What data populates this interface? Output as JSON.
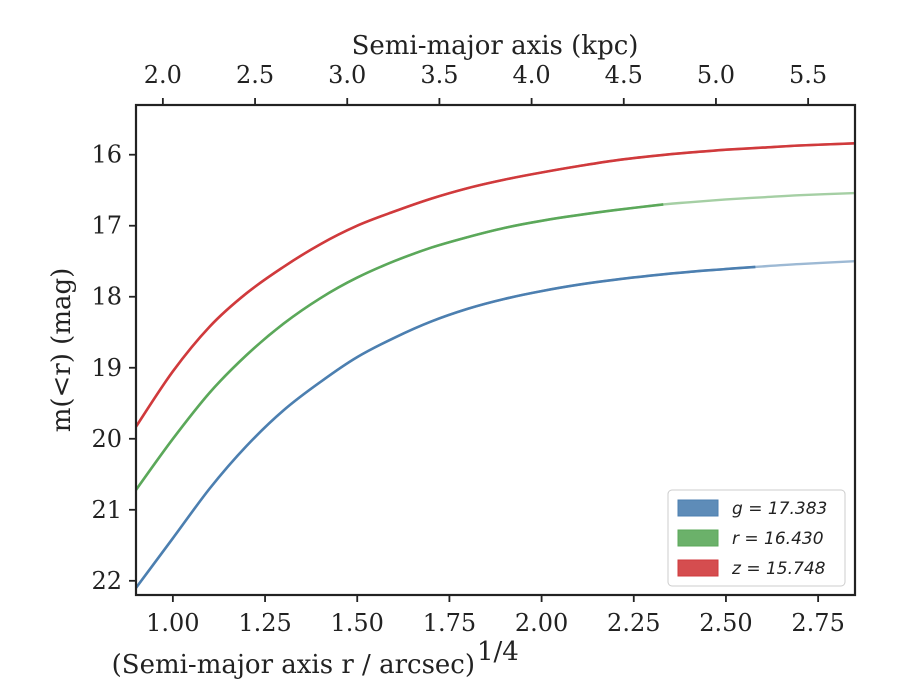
{
  "chart_data": {
    "type": "line",
    "title": "",
    "xlabel": "(Semi-major axis r / arcsec)",
    "xlabel_exponent": "1/4",
    "ylabel": "m(<r) (mag)",
    "top_xlabel": "Semi-major axis (kpc)",
    "xlim": [
      0.9,
      2.85
    ],
    "ylim": [
      22.2,
      15.3
    ],
    "y_inverted": true,
    "x_ticks": [
      1.0,
      1.25,
      1.5,
      1.75,
      2.0,
      2.25,
      2.5,
      2.75
    ],
    "x_tick_labels": [
      "1.00",
      "1.25",
      "1.50",
      "1.75",
      "2.00",
      "2.25",
      "2.50",
      "2.75"
    ],
    "y_ticks": [
      16,
      17,
      18,
      19,
      20,
      21,
      22
    ],
    "y_tick_labels": [
      "16",
      "17",
      "18",
      "19",
      "20",
      "21",
      "22"
    ],
    "top_ticks_x": [
      1.0,
      1.25,
      1.5,
      1.75,
      2.0,
      2.25,
      2.5,
      2.75
    ],
    "top_tick_labels": [
      "2.0",
      "2.5",
      "3.0",
      "3.5",
      "4.0",
      "4.5",
      "5.0",
      "5.5"
    ],
    "grid": false,
    "legend_position": "bottom-right",
    "series": [
      {
        "name": "g = 17.383",
        "band": "g",
        "value": "17.383",
        "color": "#4c7fb0",
        "x": [
          0.9,
          1.0,
          1.1,
          1.2,
          1.3,
          1.4,
          1.5,
          1.6,
          1.7,
          1.8,
          1.9,
          2.0,
          2.1,
          2.2,
          2.3,
          2.4,
          2.5,
          2.58,
          2.7,
          2.85
        ],
        "y": [
          22.1,
          21.4,
          20.7,
          20.1,
          19.6,
          19.2,
          18.85,
          18.58,
          18.35,
          18.17,
          18.03,
          17.92,
          17.83,
          17.76,
          17.7,
          17.65,
          17.61,
          17.58,
          17.54,
          17.5
        ],
        "solid_until": 2.58
      },
      {
        "name": "r = 16.430",
        "band": "r",
        "value": "16.430",
        "color": "#5ba85a",
        "x": [
          0.9,
          1.0,
          1.1,
          1.2,
          1.3,
          1.4,
          1.5,
          1.6,
          1.7,
          1.8,
          1.9,
          2.0,
          2.1,
          2.2,
          2.33,
          2.4,
          2.5,
          2.6,
          2.7,
          2.85
        ],
        "y": [
          20.72,
          20.0,
          19.35,
          18.82,
          18.38,
          18.02,
          17.73,
          17.5,
          17.31,
          17.16,
          17.03,
          16.93,
          16.85,
          16.78,
          16.7,
          16.67,
          16.63,
          16.6,
          16.57,
          16.54
        ],
        "solid_until": 2.33
      },
      {
        "name": "z = 15.748",
        "band": "z",
        "value": "15.748",
        "color": "#d03a3c",
        "x": [
          0.9,
          1.0,
          1.1,
          1.2,
          1.3,
          1.4,
          1.5,
          1.6,
          1.7,
          1.8,
          1.9,
          2.0,
          2.1,
          2.2,
          2.3,
          2.4,
          2.5,
          2.6,
          2.7,
          2.85
        ],
        "y": [
          19.83,
          19.05,
          18.42,
          17.95,
          17.58,
          17.26,
          17.0,
          16.8,
          16.62,
          16.47,
          16.35,
          16.25,
          16.16,
          16.08,
          16.02,
          15.97,
          15.93,
          15.9,
          15.87,
          15.84
        ],
        "solid_until": 2.85
      }
    ]
  }
}
